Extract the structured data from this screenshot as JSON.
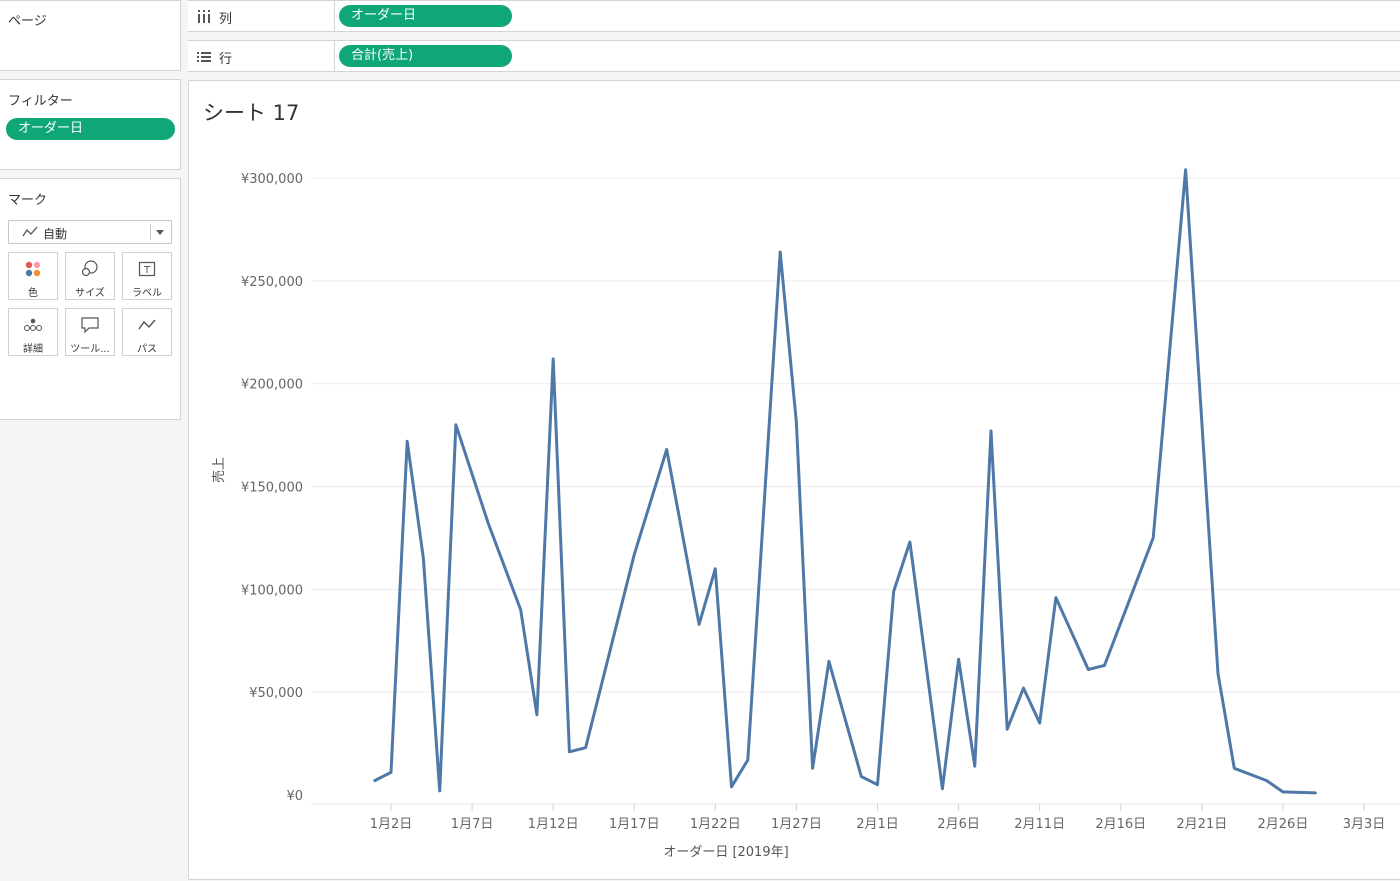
{
  "pages_shelf": {
    "title": "ページ"
  },
  "columns_shelf": {
    "label": "列",
    "pill": "オーダー日",
    "icon": "columns-icon"
  },
  "rows_shelf": {
    "label": "行",
    "pill": "合計(売上)",
    "icon": "rows-icon"
  },
  "filters": {
    "title": "フィルター",
    "pill": "オーダー日"
  },
  "marks": {
    "title": "マーク",
    "type": "自動",
    "buttons": [
      {
        "label": "色",
        "icon": "color-icon"
      },
      {
        "label": "サイズ",
        "icon": "size-icon"
      },
      {
        "label": "ラベル",
        "icon": "label-icon"
      },
      {
        "label": "詳細",
        "icon": "detail-icon"
      },
      {
        "label": "ツール...",
        "icon": "tooltip-icon"
      },
      {
        "label": "パス",
        "icon": "path-icon"
      }
    ]
  },
  "colors": {
    "pill": "#0fa678",
    "line": "#4e79a7",
    "grid": "#ececec",
    "axis_text": "#666666"
  },
  "sheet": {
    "title": "シート 17"
  },
  "chart_data": {
    "type": "line",
    "xlabel": "オーダー日 [2019年]",
    "ylabel": "売上",
    "ylim": [
      0,
      300000
    ],
    "yticks": [
      0,
      50000,
      100000,
      150000,
      200000,
      250000,
      300000
    ],
    "ytick_labels": [
      "¥0",
      "¥50,000",
      "¥100,000",
      "¥150,000",
      "¥200,000",
      "¥250,000",
      "¥300,000"
    ],
    "xticks": [
      "1月2日",
      "1月7日",
      "1月12日",
      "1月17日",
      "1月22日",
      "1月27日",
      "2月1日",
      "2月6日",
      "2月11日",
      "2月16日",
      "2月21日",
      "2月26日",
      "3月3日"
    ],
    "grid": true,
    "series": [
      {
        "x": [
          "1/1",
          "1/2",
          "1/3",
          "1/4",
          "1/5",
          "1/6",
          "1/8",
          "1/10",
          "1/11",
          "1/12",
          "1/13",
          "1/14",
          "1/17",
          "1/19",
          "1/21",
          "1/22",
          "1/23",
          "1/24",
          "1/26",
          "1/27",
          "1/28",
          "1/29",
          "1/31",
          "2/1",
          "2/2",
          "2/3",
          "2/5",
          "2/6",
          "2/7",
          "2/8",
          "2/9",
          "2/10",
          "2/11",
          "2/12",
          "2/14",
          "2/15",
          "2/18",
          "2/20",
          "2/22",
          "2/23",
          "2/25",
          "2/26",
          "2/28"
        ],
        "values": [
          7000,
          11000,
          172000,
          115000,
          2000,
          180000,
          132000,
          90000,
          39000,
          212000,
          21000,
          23000,
          117000,
          168000,
          83000,
          110000,
          4000,
          17000,
          264000,
          181000,
          13000,
          65000,
          9000,
          5000,
          99000,
          123000,
          3000,
          66000,
          14000,
          177000,
          32000,
          52000,
          35000,
          96000,
          61000,
          63000,
          125000,
          304000,
          59000,
          13000,
          7000,
          1500,
          1000
        ]
      }
    ]
  }
}
